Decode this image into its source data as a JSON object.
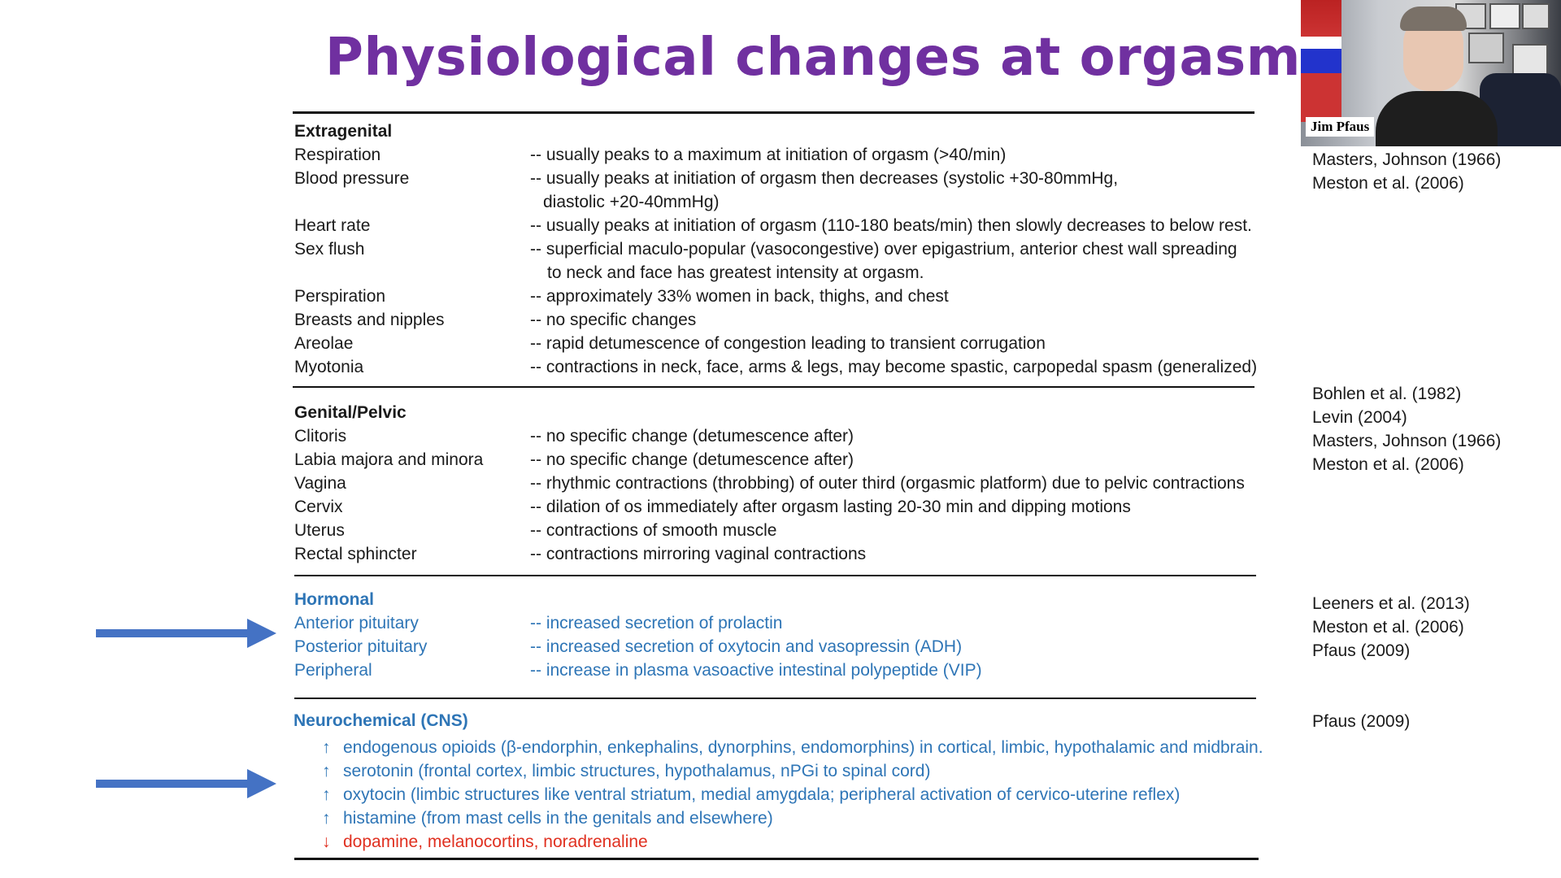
{
  "title": "Physiological changes at orgasm",
  "webcam": {
    "participant_name": "Jim Pfaus"
  },
  "sections": {
    "extragenital": {
      "heading": "Extragenital",
      "rows": [
        {
          "label": "Respiration",
          "lines": [
            "-- usually peaks to a maximum at initiation of orgasm (>40/min)"
          ]
        },
        {
          "label": "Blood pressure",
          "lines": [
            "-- usually peaks at initiation of orgasm then decreases (systolic +30-80mmHg,",
            "diastolic +20-40mmHg)"
          ]
        },
        {
          "label": "Heart rate",
          "lines": [
            "-- usually peaks at initiation of orgasm (110-180 beats/min) then slowly decreases to below rest."
          ]
        },
        {
          "label": "Sex flush",
          "lines": [
            "-- superficial maculo-popular (vasocongestive) over epigastrium, anterior chest wall spreading",
            "to neck and face has greatest intensity at orgasm."
          ]
        },
        {
          "label": "Perspiration",
          "lines": [
            "-- approximately 33% women in back, thighs, and chest"
          ]
        },
        {
          "label": "Breasts and nipples",
          "lines": [
            "-- no specific changes"
          ]
        },
        {
          "label": "Areolae",
          "lines": [
            "-- rapid detumescence of congestion leading to transient corrugation"
          ]
        },
        {
          "label": "Myotonia",
          "lines": [
            "-- contractions in neck, face, arms & legs, may become spastic, carpopedal spasm (generalized)"
          ]
        }
      ],
      "refs": [
        "Masters, Johnson (1966)",
        "Meston et al. (2006)"
      ]
    },
    "genital": {
      "heading": "Genital/Pelvic",
      "rows": [
        {
          "label": "Clitoris",
          "lines": [
            "-- no specific change (detumescence after)"
          ]
        },
        {
          "label": "Labia majora and minora",
          "lines": [
            "-- no specific change (detumescence after)"
          ]
        },
        {
          "label": "Vagina",
          "lines": [
            "-- rhythmic contractions (throbbing) of outer third (orgasmic platform) due to pelvic contractions"
          ]
        },
        {
          "label": "Cervix",
          "lines": [
            "-- dilation of os immediately after orgasm lasting 20-30 min and dipping motions"
          ]
        },
        {
          "label": "Uterus",
          "lines": [
            "-- contractions of smooth muscle"
          ]
        },
        {
          "label": "Rectal sphincter",
          "lines": [
            "-- contractions mirroring vaginal contractions"
          ]
        }
      ],
      "refs": [
        "Bohlen et al. (1982)",
        "Levin (2004)",
        "Masters, Johnson (1966)",
        "Meston et al. (2006)"
      ]
    },
    "hormonal": {
      "heading": "Hormonal",
      "rows": [
        {
          "label": "Anterior pituitary",
          "lines": [
            "-- increased secretion of prolactin"
          ]
        },
        {
          "label": "Posterior pituitary",
          "lines": [
            "-- increased secretion of oxytocin and vasopressin (ADH)"
          ]
        },
        {
          "label": "Peripheral",
          "lines": [
            "-- increase in plasma vasoactive intestinal polypeptide (VIP)"
          ]
        }
      ],
      "refs": [
        "Leeners et al. (2013)",
        "Meston et al. (2006)",
        "Pfaus (2009)"
      ]
    },
    "neuro": {
      "heading": "Neurochemical (CNS)",
      "rows": [
        {
          "arrow": "↑",
          "text": "endogenous opioids (β-endorphin, enkephalins, dynorphins, endomorphins) in cortical, limbic, hypothalamic and midbrain."
        },
        {
          "arrow": "↑",
          "text": "serotonin (frontal cortex, limbic structures, hypothalamus, nPGi to spinal cord)"
        },
        {
          "arrow": "↑",
          "text": "oxytocin (limbic structures like ventral striatum, medial amygdala; peripheral activation of cervico-uterine reflex)"
        },
        {
          "arrow": "↑",
          "text": "histamine (from mast cells in the genitals and elsewhere)"
        },
        {
          "arrow": "↓",
          "text": "dopamine, melanocortins, noradrenaline"
        }
      ],
      "refs": [
        "Pfaus (2009)"
      ]
    }
  },
  "colors": {
    "title": "#7030a0",
    "blue": "#2e75b6",
    "red": "#e03020",
    "arrow": "#4472c4"
  }
}
